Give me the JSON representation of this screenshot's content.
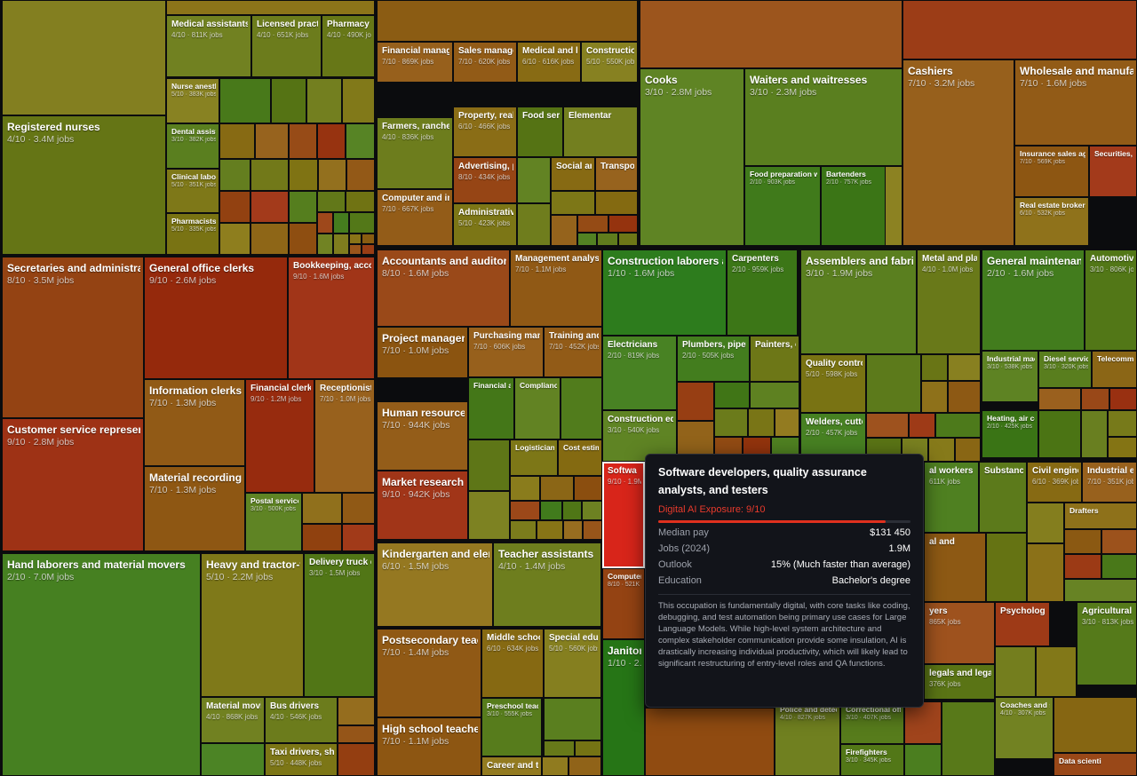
{
  "chart_data": {
    "type": "treemap",
    "title": "",
    "color_metric": "Digital AI Exposure",
    "color_scale": {
      "low": "#2e7d1e",
      "mid": "#8a7a1a",
      "high": "#a21c12"
    },
    "labeled_cells": [
      {
        "name": "Registered nurses",
        "exposure": 4,
        "jobs": "3.4M jobs"
      },
      {
        "name": "Medical assistants",
        "exposure": 4,
        "jobs": "811K jobs"
      },
      {
        "name": "Licensed practical",
        "exposure": 4,
        "jobs": "651K jobs"
      },
      {
        "name": "Pharmacy tec",
        "exposure": 4,
        "jobs": "490K jobs"
      },
      {
        "name": "Nurse anesth",
        "exposure": 5,
        "jobs": "383K jobs"
      },
      {
        "name": "Dental assista",
        "exposure": 3,
        "jobs": "382K jobs"
      },
      {
        "name": "Clinical labora",
        "exposure": 5,
        "jobs": "351K jobs"
      },
      {
        "name": "Pharmacists",
        "exposure": 5,
        "jobs": "335K jobs"
      },
      {
        "name": "Financial managers",
        "exposure": 7,
        "jobs": "869K jobs"
      },
      {
        "name": "Sales managers",
        "exposure": 7,
        "jobs": "620K jobs"
      },
      {
        "name": "Medical and hea",
        "exposure": 6,
        "jobs": "616K jobs"
      },
      {
        "name": "Construction m",
        "exposure": 5,
        "jobs": "550K jobs"
      },
      {
        "name": "Farmers, ranchers, a",
        "exposure": 4,
        "jobs": "836K jobs"
      },
      {
        "name": "Property, real es",
        "exposure": 6,
        "jobs": "466K jobs"
      },
      {
        "name": "Food servic",
        "exposure": null,
        "jobs": ""
      },
      {
        "name": "Elementar",
        "exposure": null,
        "jobs": ""
      },
      {
        "name": "Advertising, pro",
        "exposure": 8,
        "jobs": "434K jobs"
      },
      {
        "name": "Social and",
        "exposure": null,
        "jobs": ""
      },
      {
        "name": "Transporta",
        "exposure": null,
        "jobs": ""
      },
      {
        "name": "Computer and infor",
        "exposure": 7,
        "jobs": "667K jobs"
      },
      {
        "name": "Administrative s",
        "exposure": 5,
        "jobs": "423K jobs"
      },
      {
        "name": "Cooks",
        "exposure": 3,
        "jobs": "2.8M jobs"
      },
      {
        "name": "Waiters and waitresses",
        "exposure": 3,
        "jobs": "2.3M jobs"
      },
      {
        "name": "Food preparation w",
        "exposure": 2,
        "jobs": "903K jobs"
      },
      {
        "name": "Bartenders",
        "exposure": 2,
        "jobs": "757K jobs"
      },
      {
        "name": "Cashiers",
        "exposure": 7,
        "jobs": "3.2M jobs"
      },
      {
        "name": "Wholesale and manufac",
        "exposure": 7,
        "jobs": "1.6M jobs"
      },
      {
        "name": "Insurance sales age",
        "exposure": 7,
        "jobs": "569K jobs"
      },
      {
        "name": "Securities, c",
        "exposure": null,
        "jobs": ""
      },
      {
        "name": "Real estate brokers",
        "exposure": 6,
        "jobs": "532K jobs"
      },
      {
        "name": "Secretaries and administrat",
        "exposure": 8,
        "jobs": "3.5M jobs"
      },
      {
        "name": "General office clerks",
        "exposure": 9,
        "jobs": "2.6M jobs"
      },
      {
        "name": "Bookkeeping, accou",
        "exposure": 9,
        "jobs": "1.6M jobs"
      },
      {
        "name": "Information clerks",
        "exposure": 7,
        "jobs": "1.3M jobs"
      },
      {
        "name": "Financial clerks",
        "exposure": 9,
        "jobs": "1.2M jobs"
      },
      {
        "name": "Receptionists",
        "exposure": 7,
        "jobs": "1.0M jobs"
      },
      {
        "name": "Customer service represent",
        "exposure": 9,
        "jobs": "2.8M jobs"
      },
      {
        "name": "Material recording cl",
        "exposure": 7,
        "jobs": "1.3M jobs"
      },
      {
        "name": "Postal service",
        "exposure": 3,
        "jobs": "500K jobs"
      },
      {
        "name": "Accountants and auditors",
        "exposure": 8,
        "jobs": "1.6M jobs"
      },
      {
        "name": "Management analys",
        "exposure": 7,
        "jobs": "1.1M jobs"
      },
      {
        "name": "Project management",
        "exposure": 7,
        "jobs": "1.0M jobs"
      },
      {
        "name": "Purchasing manage",
        "exposure": 7,
        "jobs": "606K jobs"
      },
      {
        "name": "Training and d",
        "exposure": 7,
        "jobs": "452K jobs"
      },
      {
        "name": "Financial an",
        "exposure": null,
        "jobs": ""
      },
      {
        "name": "Complianc",
        "exposure": null,
        "jobs": ""
      },
      {
        "name": "Human resources sp",
        "exposure": 7,
        "jobs": "944K jobs"
      },
      {
        "name": "Logisticians",
        "exposure": null,
        "jobs": ""
      },
      {
        "name": "Cost estim",
        "exposure": null,
        "jobs": ""
      },
      {
        "name": "Market research ana",
        "exposure": 9,
        "jobs": "942K jobs"
      },
      {
        "name": "Construction laborers a",
        "exposure": 1,
        "jobs": "1.6M jobs"
      },
      {
        "name": "Carpenters",
        "exposure": 2,
        "jobs": "959K jobs"
      },
      {
        "name": "Electricians",
        "exposure": 2,
        "jobs": "819K jobs"
      },
      {
        "name": "Plumbers, pipefitte",
        "exposure": 2,
        "jobs": "505K jobs"
      },
      {
        "name": "Painters, con",
        "exposure": null,
        "jobs": ""
      },
      {
        "name": "Construction equip",
        "exposure": 3,
        "jobs": "540K jobs"
      },
      {
        "name": "Assemblers and fabric",
        "exposure": 3,
        "jobs": "1.9M jobs"
      },
      {
        "name": "Metal and plast",
        "exposure": 4,
        "jobs": "1.0M jobs"
      },
      {
        "name": "Quality control in",
        "exposure": 5,
        "jobs": "598K jobs"
      },
      {
        "name": "Welders, cutters,",
        "exposure": 2,
        "jobs": "457K jobs"
      },
      {
        "name": "General maintenanc",
        "exposure": 2,
        "jobs": "1.6M jobs"
      },
      {
        "name": "Automotive s",
        "exposure": 3,
        "jobs": "806K jobs"
      },
      {
        "name": "Industrial mac",
        "exposure": 3,
        "jobs": "538K jobs"
      },
      {
        "name": "Diesel servic",
        "exposure": 3,
        "jobs": "320K jobs"
      },
      {
        "name": "Telecomm",
        "exposure": null,
        "jobs": ""
      },
      {
        "name": "Heating, air co",
        "exposure": 2,
        "jobs": "425K jobs"
      },
      {
        "name": "Hand laborers and material movers",
        "exposure": 2,
        "jobs": "7.0M jobs"
      },
      {
        "name": "Heavy and tractor-tr",
        "exposure": 5,
        "jobs": "2.2M jobs"
      },
      {
        "name": "Delivery truck driv",
        "exposure": 3,
        "jobs": "1.5M jobs"
      },
      {
        "name": "Material moving",
        "exposure": 4,
        "jobs": "868K jobs"
      },
      {
        "name": "Bus drivers",
        "exposure": 4,
        "jobs": "546K jobs"
      },
      {
        "name": "Taxi drivers, shuttle",
        "exposure": 5,
        "jobs": "448K jobs"
      },
      {
        "name": "Kindergarten and elen",
        "exposure": 6,
        "jobs": "1.5M jobs"
      },
      {
        "name": "Teacher assistants",
        "exposure": 4,
        "jobs": "1.4M jobs"
      },
      {
        "name": "Postsecondary teach",
        "exposure": 7,
        "jobs": "1.4M jobs"
      },
      {
        "name": "Middle school te",
        "exposure": 6,
        "jobs": "634K jobs"
      },
      {
        "name": "Special educa",
        "exposure": 5,
        "jobs": "560K jobs"
      },
      {
        "name": "Preschool teac",
        "exposure": 3,
        "jobs": "555K jobs"
      },
      {
        "name": "High school teachers",
        "exposure": 7,
        "jobs": "1.1M jobs"
      },
      {
        "name": "Career and tec",
        "exposure": null,
        "jobs": ""
      },
      {
        "name": "Softwa",
        "exposure": 9,
        "jobs": "1.9M jobs"
      },
      {
        "name": "Computer",
        "exposure": 8,
        "jobs": "521K jobs"
      },
      {
        "name": "Janitors",
        "exposure": 1,
        "jobs": "2.4M jobs"
      },
      {
        "name": "al workers",
        "exposure": null,
        "jobs": "611K jobs"
      },
      {
        "name": "Substance",
        "exposure": null,
        "jobs": ""
      },
      {
        "name": "Civil engineers",
        "exposure": 6,
        "jobs": "369K jobs"
      },
      {
        "name": "Industrial eng",
        "exposure": 7,
        "jobs": "351K jobs"
      },
      {
        "name": "Drafters",
        "exposure": null,
        "jobs": ""
      },
      {
        "name": "al and",
        "exposure": null,
        "jobs": ""
      },
      {
        "name": "yers",
        "exposure": null,
        "jobs": "865K jobs"
      },
      {
        "name": "Psycholog",
        "exposure": null,
        "jobs": ""
      },
      {
        "name": "Agricultural wo",
        "exposure": 3,
        "jobs": "813K jobs"
      },
      {
        "name": "legals and lega",
        "exposure": null,
        "jobs": "376K jobs"
      },
      {
        "name": "Police and detec",
        "exposure": 4,
        "jobs": "827K jobs"
      },
      {
        "name": "Correctional offi",
        "exposure": 3,
        "jobs": "407K jobs"
      },
      {
        "name": "Firefighters",
        "exposure": 3,
        "jobs": "345K jobs"
      },
      {
        "name": "Coaches and s",
        "exposure": 4,
        "jobs": "307K jobs"
      },
      {
        "name": "Data scienti",
        "exposure": null,
        "jobs": ""
      }
    ]
  },
  "tooltip": {
    "title": "Software developers, quality assurance analysts, and testers",
    "exposure_label": "Digital AI Exposure: 9/10",
    "exposure_value": 9,
    "exposure_max": 10,
    "rows": [
      {
        "key": "Median pay",
        "value": "$131 450"
      },
      {
        "key": "Jobs (2024)",
        "value": "1.9M"
      },
      {
        "key": "Outlook",
        "value": "15% (Much faster than average)"
      },
      {
        "key": "Education",
        "value": "Bachelor's degree"
      }
    ],
    "description": "This occupation is fundamentally digital, with core tasks like coding, debugging, and test automation being primary use cases for Large Language Models. While high-level system architecture and complex stakeholder communication provide some insulation, AI is drastically increasing individual productivity, which will likely lead to significant restructuring of entry-level roles and QA functions."
  }
}
